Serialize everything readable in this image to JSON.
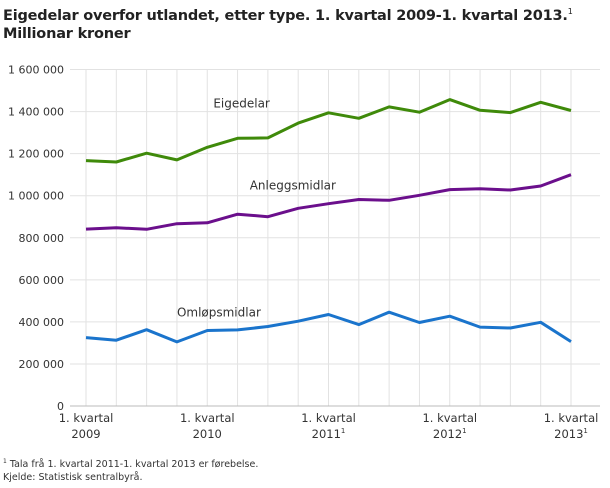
{
  "chart_data": {
    "type": "line",
    "title": "Eigedelar overfor utlandet, etter type. 1. kvartal 2009-1. kvartal 2013.",
    "title_footnote_mark": "1",
    "subtitle": "Millionar kroner",
    "x": [
      "2009K1",
      "2009K2",
      "2009K3",
      "2009K4",
      "2010K1",
      "2010K2",
      "2010K3",
      "2010K4",
      "2011K1",
      "2011K2",
      "2011K3",
      "2011K4",
      "2012K1",
      "2012K2",
      "2012K3",
      "2012K4",
      "2013K1"
    ],
    "x_tick_labels": [
      {
        "index": 0,
        "line1": "1. kvartal",
        "line2": "2009",
        "mark": ""
      },
      {
        "index": 4,
        "line1": "1. kvartal",
        "line2": "2010",
        "mark": ""
      },
      {
        "index": 8,
        "line1": "1. kvartal",
        "line2": "2011",
        "mark": "1"
      },
      {
        "index": 12,
        "line1": "1. kvartal",
        "line2": "2012",
        "mark": "1"
      },
      {
        "index": 16,
        "line1": "1. kvartal",
        "line2": "2013",
        "mark": "1"
      }
    ],
    "ylim": [
      0,
      1600000
    ],
    "yticks": [
      0,
      200000,
      400000,
      600000,
      800000,
      1000000,
      1200000,
      1400000,
      1600000
    ],
    "ytick_labels": [
      "0",
      "200 000",
      "400 000",
      "600 000",
      "800 000",
      "1 000 000",
      "1 200 000",
      "1 400 000",
      "1 600 000"
    ],
    "grid": true,
    "series": [
      {
        "name": "Eigedelar",
        "color": "#3f8a0a",
        "label_index": 4.2,
        "label_value": 1420000,
        "values": [
          1167000,
          1160000,
          1202000,
          1170000,
          1230000,
          1273000,
          1275000,
          1345000,
          1394000,
          1368000,
          1422000,
          1397000,
          1457000,
          1406000,
          1395000,
          1444000,
          1405000
        ]
      },
      {
        "name": "Anleggsmidlar",
        "color": "#6b0f8c",
        "label_index": 5.4,
        "label_value": 1030000,
        "values": [
          841000,
          848000,
          840000,
          867000,
          871000,
          912000,
          900000,
          940000,
          962000,
          982000,
          978000,
          1002000,
          1029000,
          1033000,
          1027000,
          1046000,
          1100000
        ]
      },
      {
        "name": "Omløpsmidlar",
        "color": "#1a74cc",
        "label_index": 3.0,
        "label_value": 425000,
        "values": [
          325000,
          313000,
          363000,
          305000,
          359000,
          362000,
          378000,
          403000,
          435000,
          387000,
          446000,
          397000,
          427000,
          375000,
          371000,
          398000,
          306000
        ]
      }
    ]
  },
  "footnotes": {
    "note_mark": "1",
    "note": "Tala frå 1. kvartal 2011-1. kvartal 2013 er førebelse.",
    "source": "Kjelde: Statistisk sentralbyrå."
  }
}
